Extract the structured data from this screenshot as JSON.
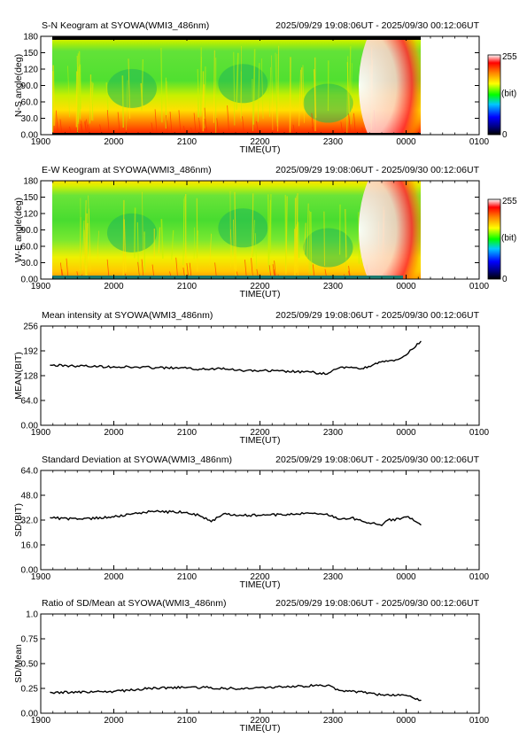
{
  "header_time_range": "2025/09/29 19:08:06UT - 2025/09/30 00:12:06UT",
  "x_axis": {
    "label": "TIME(UT)",
    "ticks": [
      "1900",
      "2000",
      "2100",
      "2200",
      "2300",
      "0000",
      "0100"
    ]
  },
  "colorbar": {
    "max_label": "255",
    "unit_label": "(bit)",
    "min_label": "0"
  },
  "chart_data": [
    {
      "type": "heatmap",
      "title": "S-N Keogram at SYOWA(WMI3_486nm)",
      "ylabel": "N-S angle(deg)",
      "xlabel": "TIME(UT)",
      "ylim": [
        0,
        180
      ],
      "y_ticks": [
        "0.00",
        "30.0",
        "60.0",
        "90.0",
        "120",
        "150",
        "180"
      ],
      "x_ticks": [
        "1900",
        "2000",
        "2100",
        "2200",
        "2300",
        "0000",
        "0100"
      ],
      "colorbar": [
        "0",
        "255"
      ]
    },
    {
      "type": "heatmap",
      "title": "E-W Keogram at SYOWA(WMI3_486nm)",
      "ylabel": "W-E angle(deg)",
      "xlabel": "TIME(UT)",
      "ylim": [
        0,
        180
      ],
      "y_ticks": [
        "0.00",
        "30.0",
        "60.0",
        "90.0",
        "120",
        "150",
        "180"
      ],
      "x_ticks": [
        "1900",
        "2000",
        "2100",
        "2200",
        "2300",
        "0000",
        "0100"
      ],
      "colorbar": [
        "0",
        "255"
      ]
    },
    {
      "type": "line",
      "title": "Mean intensity at SYOWA(WMI3_486nm)",
      "ylabel": "MEAN(BIT)",
      "xlabel": "TIME(UT)",
      "ylim": [
        0,
        256
      ],
      "y_ticks": [
        "0.00",
        "64.0",
        "128",
        "192",
        "256"
      ],
      "x_ticks": [
        "1900",
        "2000",
        "2100",
        "2200",
        "2300",
        "0000",
        "0100"
      ],
      "x": [
        "19:08",
        "19:30",
        "20:00",
        "20:30",
        "21:00",
        "21:15",
        "21:30",
        "21:45",
        "22:00",
        "22:30",
        "22:45",
        "22:55",
        "23:05",
        "23:15",
        "23:25",
        "23:35",
        "23:45",
        "23:50",
        "23:55",
        "00:00",
        "00:05",
        "00:12"
      ],
      "values": [
        155,
        153,
        151,
        149,
        147,
        144,
        148,
        141,
        141,
        138,
        136,
        132,
        148,
        150,
        146,
        160,
        165,
        166,
        172,
        181,
        196,
        216
      ]
    },
    {
      "type": "line",
      "title": "Standard Deviation at SYOWA(WMI3_486nm)",
      "ylabel": "SD(BIT)",
      "xlabel": "TIME(UT)",
      "ylim": [
        0,
        64
      ],
      "y_ticks": [
        "0.00",
        "16.0",
        "32.0",
        "48.0",
        "64.0"
      ],
      "x_ticks": [
        "1900",
        "2000",
        "2100",
        "2200",
        "2300",
        "0000",
        "0100"
      ],
      "x": [
        "19:08",
        "19:30",
        "20:00",
        "20:15",
        "20:30",
        "21:00",
        "21:10",
        "21:20",
        "21:30",
        "21:45",
        "22:00",
        "22:30",
        "22:45",
        "22:55",
        "23:05",
        "23:15",
        "23:25",
        "23:35",
        "23:40",
        "23:45",
        "23:55",
        "00:00",
        "00:05",
        "00:12"
      ],
      "values": [
        33.5,
        32.5,
        34,
        36,
        37.5,
        37,
        35,
        31,
        36,
        35,
        35,
        36,
        36.5,
        36,
        32.5,
        33.5,
        31,
        29.5,
        28.5,
        32,
        32.5,
        34,
        33,
        29
      ]
    },
    {
      "type": "line",
      "title": "Ratio of SD/Mean at SYOWA(WMI3_486nm)",
      "ylabel": "SD/Mean",
      "xlabel": "TIME(UT)",
      "ylim": [
        0,
        1
      ],
      "y_ticks": [
        "0.00",
        "0.25",
        "0.50",
        "0.75",
        "1.0"
      ],
      "x_ticks": [
        "1900",
        "2000",
        "2100",
        "2200",
        "2300",
        "0000",
        "0100"
      ],
      "x": [
        "19:08",
        "19:30",
        "20:00",
        "20:30",
        "21:00",
        "21:15",
        "21:30",
        "21:45",
        "22:00",
        "22:30",
        "22:45",
        "22:55",
        "23:05",
        "23:15",
        "23:25",
        "23:35",
        "23:45",
        "23:55",
        "00:00",
        "00:05",
        "00:12"
      ],
      "values": [
        0.21,
        0.21,
        0.22,
        0.25,
        0.26,
        0.26,
        0.25,
        0.25,
        0.26,
        0.27,
        0.28,
        0.28,
        0.23,
        0.22,
        0.21,
        0.19,
        0.19,
        0.18,
        0.18,
        0.16,
        0.13
      ]
    }
  ]
}
